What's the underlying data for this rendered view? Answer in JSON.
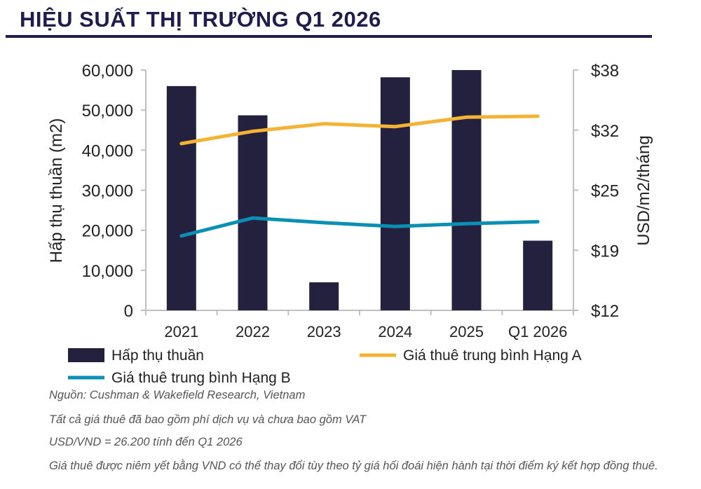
{
  "title": "HIỆU SUẤT THỊ TRƯỜNG Q1 2026",
  "chart_data": {
    "type": "bar",
    "categories": [
      "2021",
      "2022",
      "2023",
      "2024",
      "2025",
      "Q1 2026"
    ],
    "series": [
      {
        "name": "Hấp thụ thuần",
        "kind": "bar",
        "axis": "left",
        "color": "#24213f",
        "values": [
          56000,
          48700,
          7000,
          58200,
          60000,
          17400
        ]
      },
      {
        "name": "Giá thuê trung bình Hạng A",
        "kind": "line",
        "axis": "right",
        "color": "#f5b335",
        "values": [
          30.2,
          31.5,
          32.3,
          32.0,
          33.0,
          33.1
        ]
      },
      {
        "name": "Giá thuê trung bình Hạng B",
        "kind": "line",
        "axis": "right",
        "color": "#0b8fb5",
        "values": [
          20.4,
          22.3,
          21.8,
          21.4,
          21.7,
          21.9
        ]
      }
    ],
    "ylabel_left": "Hấp thụ thuần (m2)",
    "ylabel_right": "USD/m2/tháng",
    "ylim_left": [
      0,
      60000
    ],
    "ylim_right": [
      12.5,
      38
    ],
    "yticks_left": [
      "0",
      "10,000",
      "20,000",
      "30,000",
      "40,000",
      "50,000",
      "60,000"
    ],
    "yticks_right": [
      "$12",
      "$19",
      "$25",
      "$32",
      "$38"
    ],
    "grid": false,
    "legend_position": "bottom"
  },
  "notes": [
    "Nguồn: Cushman & Wakefield Research, Vietnam",
    "Tất cả giá thuê đã bao gồm phí dịch vụ và chưa bao gồm VAT",
    "USD/VND = 26.200 tính đến Q1 2026",
    "Giá thuê được niêm yết bằng VND có thể thay đổi tùy theo tỷ giá hối đoái hiện hành tại thời điểm ký kết hợp đồng thuê."
  ]
}
